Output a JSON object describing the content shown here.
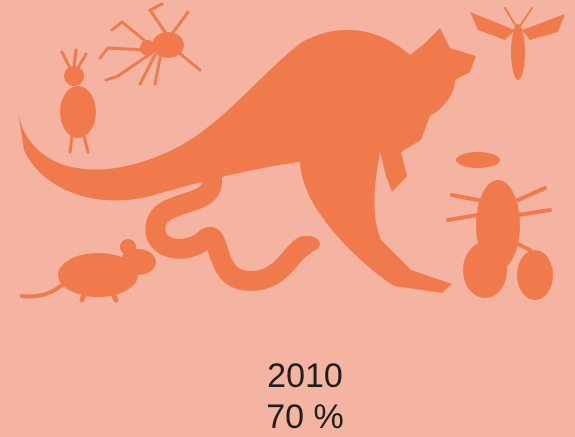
{
  "caption": {
    "year": "2010",
    "share": "70 %"
  }
}
